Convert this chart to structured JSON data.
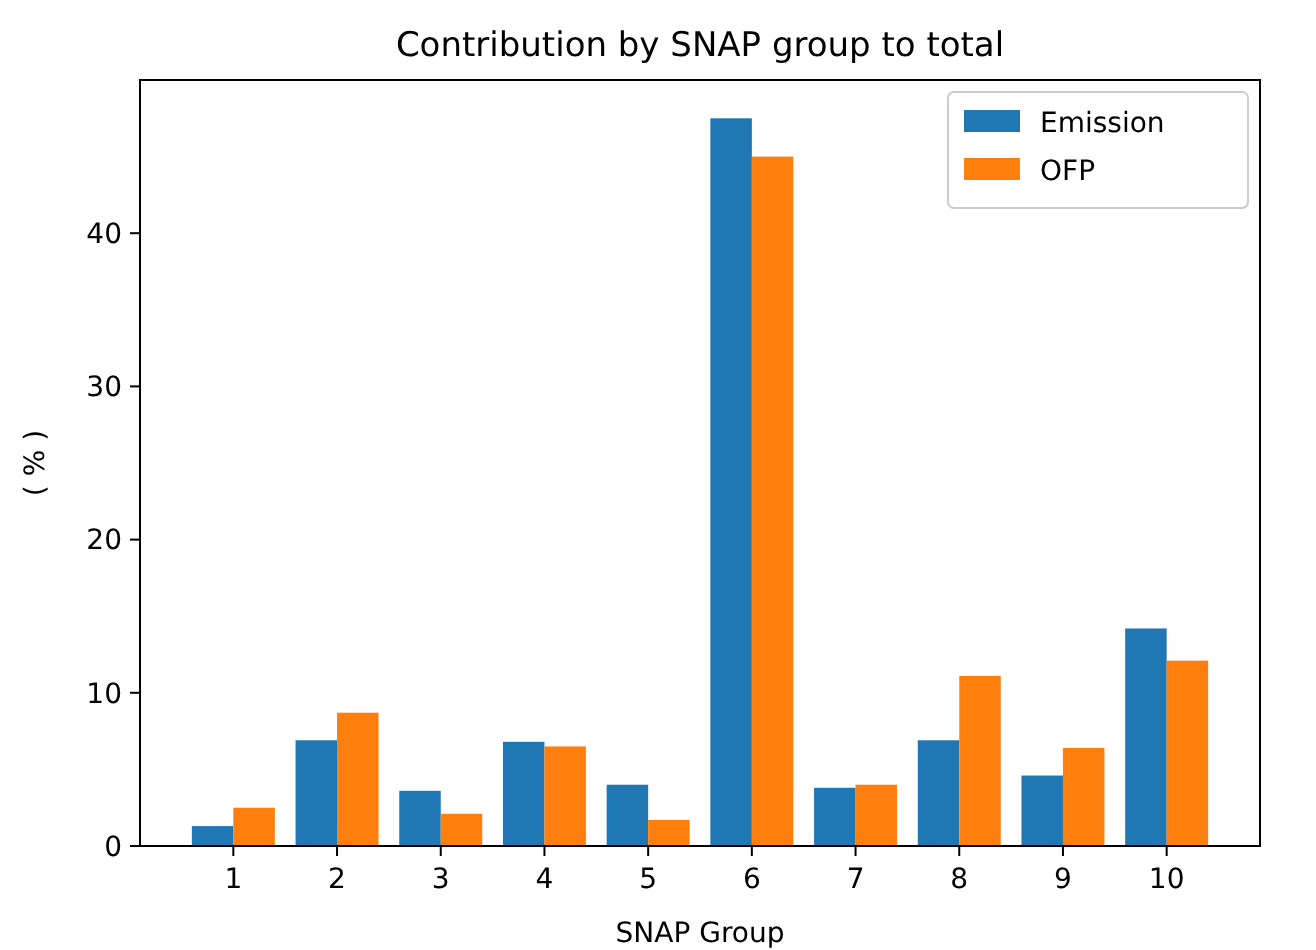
{
  "chart_data": {
    "type": "bar",
    "title": "Contribution by SNAP group to total",
    "xlabel": "SNAP Group",
    "ylabel": "( % )",
    "categories": [
      "1",
      "2",
      "3",
      "4",
      "5",
      "6",
      "7",
      "8",
      "9",
      "10"
    ],
    "series": [
      {
        "name": "Emission",
        "color": "#1f77b4",
        "values": [
          1.3,
          6.9,
          3.6,
          6.8,
          4.0,
          47.5,
          3.8,
          6.9,
          4.6,
          14.2
        ]
      },
      {
        "name": "OFP",
        "color": "#ff7f0e",
        "values": [
          2.5,
          8.7,
          2.1,
          6.5,
          1.7,
          45.0,
          4.0,
          11.1,
          6.4,
          12.1
        ]
      }
    ],
    "ylim": [
      0,
      50
    ],
    "yticks": [
      0,
      10,
      20,
      30,
      40
    ],
    "grid": false,
    "legend": "top right"
  }
}
